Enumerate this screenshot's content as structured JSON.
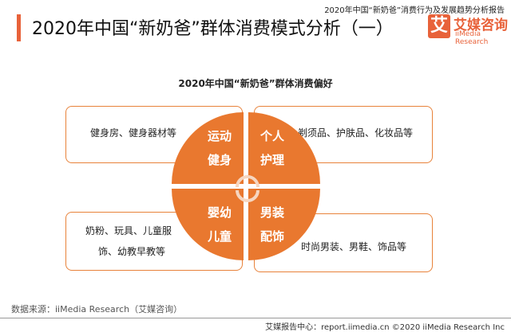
{
  "header": {
    "title": "2020年中国“新奶爸”群体消费模式分析（一）",
    "report_name": "2020年中国“新奶爸”消费行为及发展趋势分析报告",
    "logo_mark": "艾",
    "logo_cn": "艾媒咨询",
    "logo_en": "iiMedia Research",
    "accent_color": "#e8623a"
  },
  "diagram": {
    "title": "2020年中国“新奶爸”群体消费偏好",
    "quadrants": [
      {
        "label_line1": "运动",
        "label_line2": "健身",
        "detail": "健身房、健身器材等"
      },
      {
        "label_line1": "个人",
        "label_line2": "护理",
        "detail": "剃须品、护肤品、化妆品等"
      },
      {
        "label_line1": "婴幼",
        "label_line2": "儿童",
        "detail_line1": "奶粉、玩具、儿童服",
        "detail_line2": "饰、幼教早教等"
      },
      {
        "label_line1": "男装",
        "label_line2": "配饰",
        "detail": "时尚男装、男鞋、饰品等"
      }
    ],
    "center_icon": "cycle-arrows-icon",
    "fill_color": "#e9782f"
  },
  "footer": {
    "source": "数据来源：iiMedia Research（艾媒咨询）",
    "copyright": "艾媒报告中心：report.iimedia.cn  ©2020  iiMedia Research Inc"
  }
}
